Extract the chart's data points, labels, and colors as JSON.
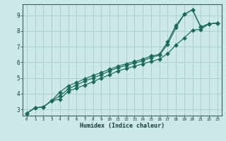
{
  "xlabel": "Humidex (Indice chaleur)",
  "bg_color": "#cce8e8",
  "grid_color": "#aacccc",
  "line_color": "#1a6b5a",
  "xlim": [
    -0.5,
    23.5
  ],
  "ylim": [
    2.6,
    9.7
  ],
  "line1_x": [
    0,
    1,
    2,
    3,
    4,
    5,
    6,
    7,
    8,
    9,
    10,
    11,
    12,
    13,
    14,
    15,
    16,
    17,
    18,
    19,
    20,
    21,
    22,
    23
  ],
  "line1_y": [
    2.75,
    3.1,
    3.15,
    3.55,
    3.65,
    4.15,
    4.35,
    4.55,
    4.75,
    5.0,
    5.2,
    5.45,
    5.6,
    5.75,
    5.9,
    6.05,
    6.2,
    6.55,
    7.1,
    7.55,
    8.05,
    8.1,
    8.45,
    8.5
  ],
  "line2_x": [
    0,
    1,
    2,
    3,
    4,
    5,
    6,
    7,
    8,
    9,
    10,
    11,
    12,
    13,
    14,
    15,
    16,
    17,
    18,
    19,
    20,
    21,
    22,
    23
  ],
  "line2_y": [
    2.75,
    3.1,
    3.15,
    3.55,
    3.85,
    4.3,
    4.55,
    4.8,
    5.0,
    5.2,
    5.45,
    5.65,
    5.8,
    5.95,
    6.1,
    6.3,
    6.45,
    7.15,
    8.2,
    9.05,
    9.35,
    8.25,
    8.45,
    8.5
  ],
  "line3_x": [
    0,
    1,
    2,
    3,
    4,
    5,
    6,
    7,
    8,
    9,
    10,
    11,
    12,
    13,
    14,
    15,
    16,
    17,
    18,
    19,
    20,
    21,
    22,
    23
  ],
  "line3_y": [
    2.75,
    3.1,
    3.15,
    3.55,
    4.1,
    4.5,
    4.7,
    4.95,
    5.15,
    5.35,
    5.55,
    5.75,
    5.9,
    6.05,
    6.2,
    6.4,
    6.5,
    7.3,
    8.35,
    9.05,
    9.35,
    8.25,
    8.45,
    8.5
  ],
  "xticks": [
    0,
    1,
    2,
    3,
    4,
    5,
    6,
    7,
    8,
    9,
    10,
    11,
    12,
    13,
    14,
    15,
    16,
    17,
    18,
    19,
    20,
    21,
    22,
    23
  ],
  "yticks": [
    3,
    4,
    5,
    6,
    7,
    8,
    9
  ]
}
